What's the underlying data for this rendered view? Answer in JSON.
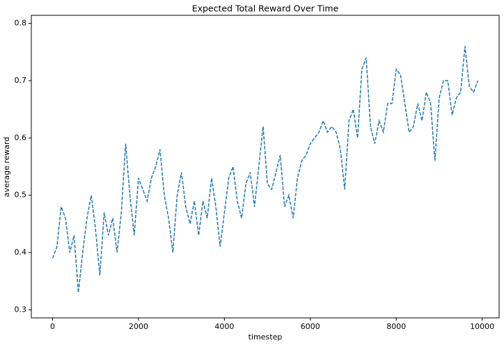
{
  "chart_data": {
    "type": "line",
    "title": "Expected Total Reward Over Time",
    "x_label": "timestep",
    "y_label": "average reward",
    "x": [
      0,
      100,
      200,
      300,
      400,
      500,
      600,
      700,
      800,
      900,
      1000,
      1100,
      1200,
      1300,
      1400,
      1500,
      1600,
      1700,
      1800,
      1900,
      2000,
      2100,
      2200,
      2300,
      2400,
      2500,
      2600,
      2700,
      2800,
      2900,
      3000,
      3100,
      3200,
      3300,
      3400,
      3500,
      3600,
      3700,
      3800,
      3900,
      4000,
      4100,
      4200,
      4300,
      4400,
      4500,
      4600,
      4700,
      4800,
      4900,
      5000,
      5100,
      5200,
      5300,
      5400,
      5500,
      5600,
      5700,
      5800,
      5900,
      6000,
      6100,
      6200,
      6300,
      6400,
      6500,
      6600,
      6700,
      6800,
      6900,
      7000,
      7100,
      7200,
      7300,
      7400,
      7500,
      7600,
      7700,
      7800,
      7900,
      8000,
      8100,
      8200,
      8300,
      8400,
      8500,
      8600,
      8700,
      8800,
      8900,
      9000,
      9100,
      9200,
      9300,
      9400,
      9500,
      9600,
      9700,
      9800,
      9900
    ],
    "series": [
      {
        "color": "#1f77b4",
        "values": [
          0.39,
          0.41,
          0.48,
          0.46,
          0.4,
          0.43,
          0.33,
          0.4,
          0.46,
          0.5,
          0.44,
          0.36,
          0.47,
          0.43,
          0.46,
          0.4,
          0.47,
          0.59,
          0.5,
          0.43,
          0.53,
          0.51,
          0.49,
          0.53,
          0.55,
          0.58,
          0.5,
          0.46,
          0.4,
          0.5,
          0.54,
          0.48,
          0.45,
          0.49,
          0.43,
          0.49,
          0.46,
          0.53,
          0.48,
          0.41,
          0.47,
          0.53,
          0.55,
          0.49,
          0.46,
          0.52,
          0.54,
          0.48,
          0.55,
          0.62,
          0.52,
          0.51,
          0.54,
          0.57,
          0.48,
          0.5,
          0.46,
          0.53,
          0.56,
          0.57,
          0.59,
          0.6,
          0.61,
          0.63,
          0.61,
          0.62,
          0.61,
          0.58,
          0.51,
          0.63,
          0.65,
          0.6,
          0.72,
          0.74,
          0.62,
          0.59,
          0.63,
          0.61,
          0.66,
          0.66,
          0.72,
          0.71,
          0.66,
          0.61,
          0.62,
          0.66,
          0.63,
          0.68,
          0.66,
          0.56,
          0.67,
          0.7,
          0.7,
          0.64,
          0.67,
          0.68,
          0.76,
          0.69,
          0.68,
          0.7
        ]
      }
    ],
    "xlim": [
      -495,
      10395
    ],
    "ylim": [
      0.286,
      0.814
    ],
    "xticks": [
      0,
      2000,
      4000,
      6000,
      8000,
      10000
    ],
    "yticks": [
      0.3,
      0.4,
      0.5,
      0.6,
      0.7,
      0.8
    ],
    "line_style": "dashed",
    "grid": false
  }
}
